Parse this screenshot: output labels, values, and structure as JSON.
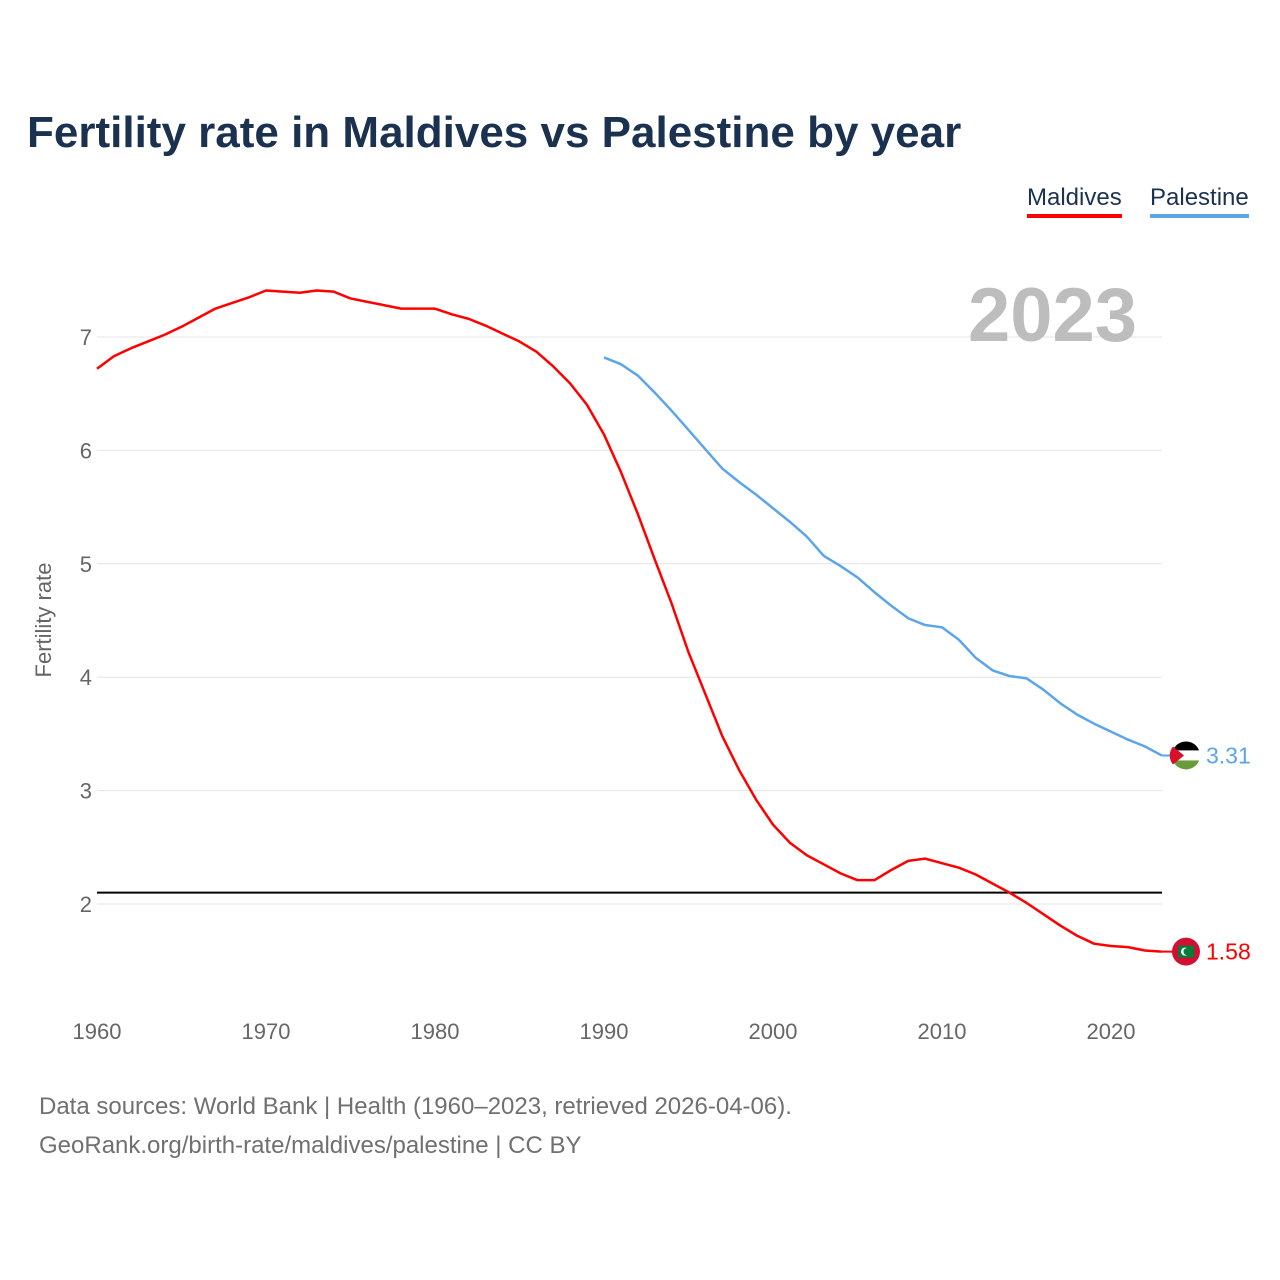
{
  "title": "Fertility rate in Maldives vs Palestine by year",
  "year_label": "2023",
  "source_line1": "Data sources: World Bank | Health (1960–2023, retrieved 2026-04-06).",
  "source_line2": "GeoRank.org/birth-rate/maldives/palestine | CC BY",
  "chart_data": {
    "type": "line",
    "title": "Fertility rate in Maldives vs Palestine by year",
    "xlabel": "",
    "ylabel": "Fertility rate",
    "xlim": [
      1960,
      2023
    ],
    "ylim": [
      1.2,
      7.6
    ],
    "xticks": [
      1960,
      1970,
      1980,
      1990,
      2000,
      2010,
      2020
    ],
    "yticks": [
      2,
      3,
      4,
      5,
      6,
      7
    ],
    "grid": true,
    "legend_position": "top-right",
    "reference_line": 2.1,
    "series": [
      {
        "name": "Maldives",
        "color": "#ff0000",
        "end_label": "1.58",
        "start": 1960,
        "values": [
          6.72,
          6.83,
          6.9,
          6.96,
          7.02,
          7.09,
          7.17,
          7.25,
          7.3,
          7.35,
          7.41,
          7.4,
          7.39,
          7.41,
          7.4,
          7.34,
          7.31,
          7.28,
          7.25,
          7.25,
          7.25,
          7.2,
          7.16,
          7.1,
          7.03,
          6.96,
          6.87,
          6.74,
          6.59,
          6.4,
          6.14,
          5.81,
          5.44,
          5.04,
          4.65,
          4.22,
          3.85,
          3.48,
          3.18,
          2.92,
          2.7,
          2.54,
          2.43,
          2.35,
          2.27,
          2.21,
          2.21,
          2.3,
          2.38,
          2.4,
          2.36,
          2.32,
          2.26,
          2.18,
          2.1,
          2.01,
          1.91,
          1.81,
          1.72,
          1.65,
          1.63,
          1.62,
          1.59,
          1.58
        ]
      },
      {
        "name": "Palestine",
        "color": "#5da5ea",
        "end_label": "3.31",
        "start": 1990,
        "values": [
          6.82,
          6.76,
          6.66,
          6.51,
          6.35,
          6.18,
          6.01,
          5.84,
          5.72,
          5.61,
          5.49,
          5.37,
          5.24,
          5.07,
          4.98,
          4.88,
          4.75,
          4.63,
          4.52,
          4.46,
          4.44,
          4.33,
          4.17,
          4.06,
          4.01,
          3.99,
          3.89,
          3.77,
          3.67,
          3.59,
          3.52,
          3.45,
          3.39,
          3.31
        ]
      }
    ]
  }
}
